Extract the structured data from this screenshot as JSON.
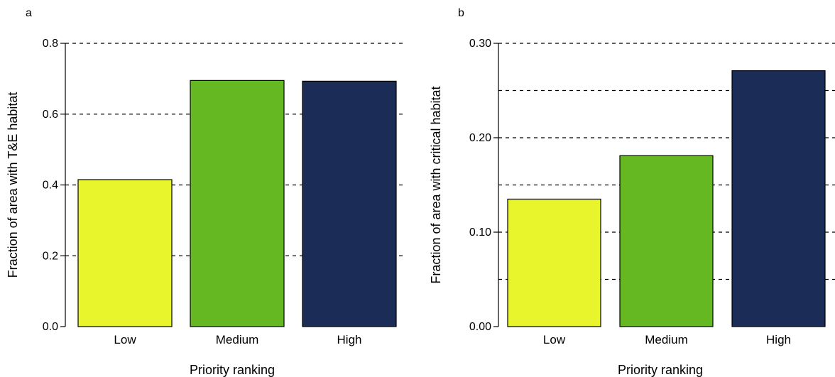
{
  "chart_data": [
    {
      "panel": "a",
      "type": "bar",
      "title": "",
      "xlabel": "Priority ranking",
      "ylabel": "Fraction of area with T&E habitat",
      "categories": [
        "Low",
        "Medium",
        "High"
      ],
      "values": [
        0.415,
        0.695,
        0.693
      ],
      "bar_colors": [
        "#e8f52c",
        "#66b822",
        "#1b2c56"
      ],
      "ylim": [
        0,
        0.8
      ],
      "yticks": [
        0.0,
        0.2,
        0.4,
        0.6,
        0.8
      ],
      "ytick_labels": [
        "0.0",
        "0.2",
        "0.4",
        "0.6",
        "0.8"
      ],
      "gridlines": [
        0.2,
        0.4,
        0.6,
        0.8
      ],
      "grid": "dashed horizontal"
    },
    {
      "panel": "b",
      "type": "bar",
      "title": "",
      "xlabel": "Priority ranking",
      "ylabel": "Fraction of area with critical habitat",
      "categories": [
        "Low",
        "Medium",
        "High"
      ],
      "values": [
        0.135,
        0.181,
        0.271
      ],
      "bar_colors": [
        "#e8f52c",
        "#66b822",
        "#1b2c56"
      ],
      "ylim": [
        0,
        0.3
      ],
      "yticks": [
        0.0,
        0.1,
        0.2,
        0.3
      ],
      "ytick_labels": [
        "0.00",
        "0.10",
        "0.20",
        "0.30"
      ],
      "gridlines": [
        0.05,
        0.1,
        0.15,
        0.2,
        0.25,
        0.3
      ],
      "grid": "dashed horizontal"
    }
  ]
}
